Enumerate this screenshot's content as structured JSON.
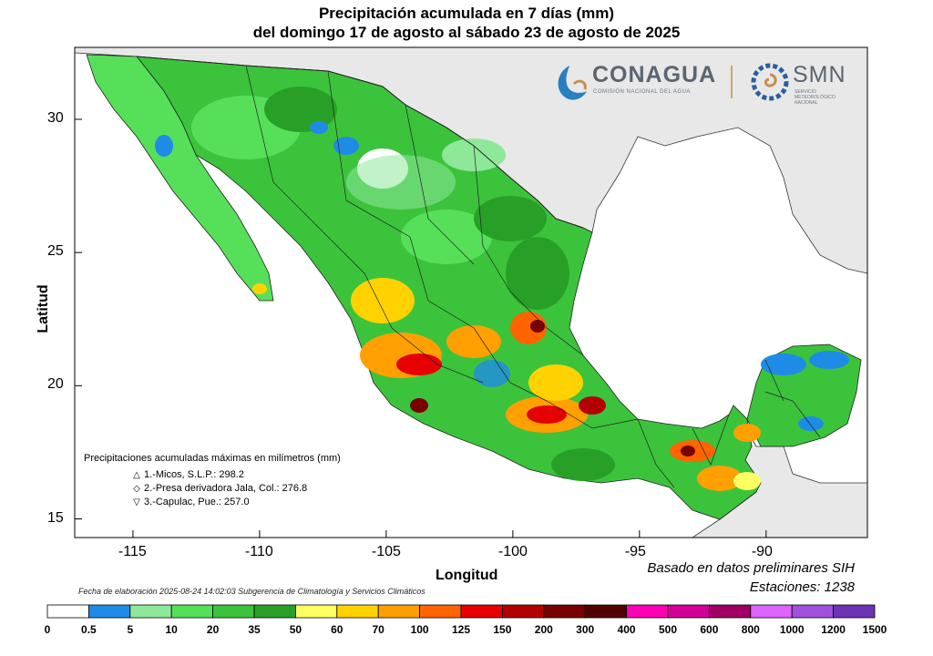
{
  "title_line1": "Precipitación acumulada en 7 días (mm)",
  "title_line2": "del domingo 17 de agosto al sábado 23 de agosto de 2025",
  "axes": {
    "xlabel": "Longitud",
    "ylabel": "Latitud",
    "x_ticks": [
      "-115",
      "-110",
      "-105",
      "-100",
      "-95",
      "-90"
    ],
    "y_ticks": [
      "30",
      "25",
      "20",
      "15"
    ],
    "xlim": [
      -117.3,
      -86.0
    ],
    "ylim": [
      14.3,
      32.7
    ]
  },
  "logos": {
    "conagua": "CONAGUA",
    "conagua_sub": "COMISIÓN NACIONAL DEL AGUA",
    "smn": "SMN",
    "smn_sub": "SERVICIO METEOROLÓGICO NACIONAL"
  },
  "max_precip": {
    "header": "Precipitaciones acumuladas máximas en milímetros (mm)",
    "items": [
      {
        "symbol": "△",
        "text": "1.-Micos, S.L.P.: 298.2"
      },
      {
        "symbol": "◇",
        "text": "2.-Presa derivadora Jala, Col.: 276.8"
      },
      {
        "symbol": "▽",
        "text": "3.-Capulac, Pue.: 257.0"
      }
    ]
  },
  "footer": {
    "elaboration": "Fecha de elaboración 2025-08-24 14:02:03 Subgerencia de Climatología y Servicios Climáticos",
    "basis": "Basado en datos preliminares SIH",
    "stations": "Estaciones:  1238"
  },
  "colorbar": {
    "labels": [
      "0",
      "0.5",
      "5",
      "10",
      "20",
      "35",
      "50",
      "60",
      "70",
      "100",
      "125",
      "150",
      "200",
      "300",
      "400",
      "500",
      "600",
      "800",
      "1000",
      "1200",
      "1500"
    ],
    "colors": [
      "#ffffff",
      "#1e8ce6",
      "#8ee89a",
      "#56e05a",
      "#3cc33c",
      "#28a028",
      "#ffff64",
      "#ffd200",
      "#ffa000",
      "#ff6400",
      "#e60000",
      "#b40000",
      "#780000",
      "#500000",
      "#ff00b4",
      "#d20096",
      "#a00064",
      "#dc64ff",
      "#a050dc",
      "#6e32b4",
      "#3c1e8c"
    ]
  }
}
